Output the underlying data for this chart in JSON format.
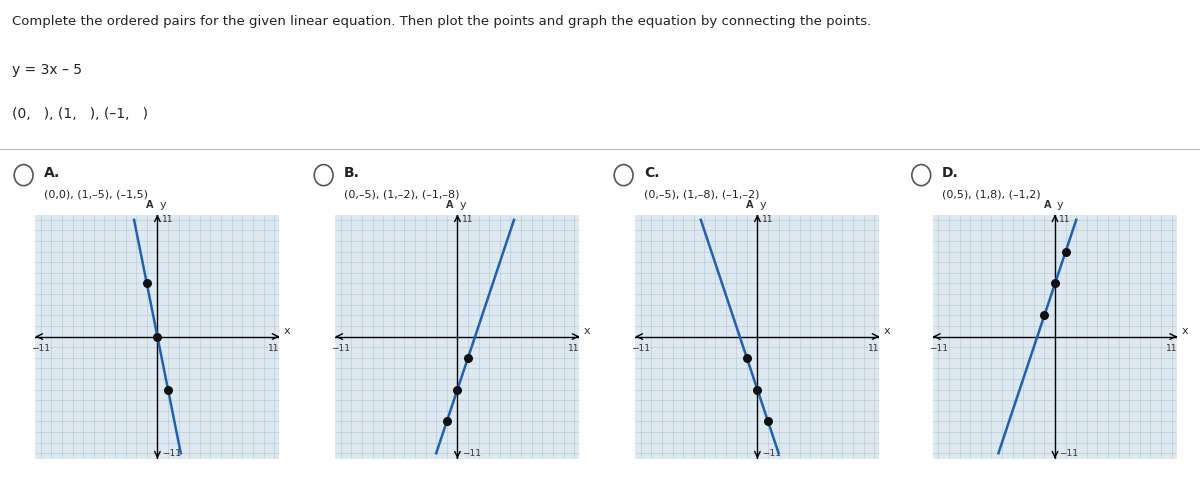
{
  "title": "Complete the ordered pairs for the given linear equation. Then plot the points and graph the equation by connecting the points.",
  "equation": "y = 3x – 5",
  "blanks": "(0,   ), (1,   ), (–1,   )",
  "page_bg": "#ffffff",
  "graph_bg": "#dde8f0",
  "options": [
    {
      "label": "A.",
      "points": [
        [
          0,
          0
        ],
        [
          1,
          -5
        ],
        [
          -1,
          5
        ]
      ],
      "point_labels": "(0,0), (1,–5), (–1,5)",
      "selected": false
    },
    {
      "label": "B.",
      "points": [
        [
          0,
          -5
        ],
        [
          1,
          -2
        ],
        [
          -1,
          -8
        ]
      ],
      "point_labels": "(0,–5), (1,–2), (–1,–8)",
      "selected": false
    },
    {
      "label": "C.",
      "points": [
        [
          0,
          -5
        ],
        [
          1,
          -8
        ],
        [
          -1,
          -2
        ]
      ],
      "point_labels": "(0,–5), (1,–8), (–1,–2)",
      "selected": false
    },
    {
      "label": "D.",
      "points": [
        [
          0,
          5
        ],
        [
          1,
          8
        ],
        [
          -1,
          2
        ]
      ],
      "point_labels": "(0,5), (1,8), (–1,2)",
      "selected": false
    }
  ],
  "axis_lim": [
    -11,
    11
  ],
  "grid_color": "#b8cdd8",
  "axis_color": "#000000",
  "line_color": "#2060b0",
  "point_color": "#111111",
  "dot_size": 30,
  "line_width": 1.8,
  "panel_bg": "#ffffff",
  "panel_border": "#aaaaaa",
  "radio_color": "#555555"
}
